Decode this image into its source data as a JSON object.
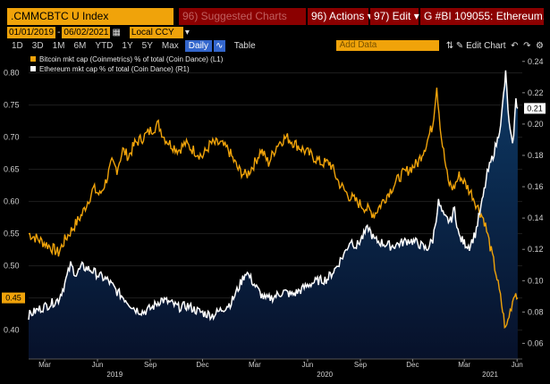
{
  "toolbar": {
    "ticker": ".CMMCBTC U Index",
    "suggested": "96) Suggested Charts",
    "actions": "96) Actions ▾",
    "edit": "97) Edit ▾",
    "security": "G #BI 109055: Ethereum..."
  },
  "range": {
    "start": "01/01/2019",
    "end": "06/02/2021",
    "currency": "Local CCY"
  },
  "periods": [
    "1D",
    "3D",
    "1M",
    "6M",
    "YTD",
    "1Y",
    "5Y",
    "Max"
  ],
  "frequency": "Daily",
  "table_label": "Table",
  "add_data": "Add Data",
  "edit_chart": "Edit Chart",
  "colors": {
    "btc": "#f0a30a",
    "eth": "#ffffff",
    "area": "#0a1f4a",
    "bg": "#000000"
  },
  "chart_data": {
    "type": "line",
    "x_range": [
      "2019-02-01",
      "2021-06-10"
    ],
    "y_left": {
      "ticks": [
        0.4,
        0.45,
        0.5,
        0.55,
        0.6,
        0.65,
        0.7,
        0.75,
        0.8
      ],
      "range": [
        0.355,
        0.83
      ]
    },
    "y_right": {
      "ticks": [
        0.06,
        0.08,
        0.1,
        0.12,
        0.14,
        0.16,
        0.18,
        0.2,
        0.22,
        0.24
      ],
      "range": [
        0.05,
        0.245
      ]
    },
    "month_ticks": [
      "Mar",
      "Jun",
      "Sep",
      "Dec",
      "Mar",
      "Jun",
      "Sep",
      "Dec",
      "Mar",
      "Jun"
    ],
    "month_tick_dates": [
      "2019-03-01",
      "2019-06-01",
      "2019-09-01",
      "2019-12-01",
      "2020-03-01",
      "2020-06-01",
      "2020-09-01",
      "2020-12-01",
      "2021-03-01",
      "2021-06-01"
    ],
    "year_labels": [
      {
        "label": "2019",
        "date": "2019-07-01"
      },
      {
        "label": "2020",
        "date": "2020-07-01"
      },
      {
        "label": "2021",
        "date": "2021-04-15"
      }
    ],
    "last_value_left": "0.45",
    "last_value_right": "0.21",
    "series": [
      {
        "name": "Bitcoin mkt cap (Coinmetrics) % of total (Coin Dance) (L1)",
        "axis": "left",
        "points": [
          [
            "2019-02-01",
            0.55
          ],
          [
            "2019-02-20",
            0.54
          ],
          [
            "2019-03-10",
            0.53
          ],
          [
            "2019-03-25",
            0.52
          ],
          [
            "2019-04-05",
            0.54
          ],
          [
            "2019-04-20",
            0.56
          ],
          [
            "2019-05-05",
            0.58
          ],
          [
            "2019-05-15",
            0.6
          ],
          [
            "2019-05-25",
            0.62
          ],
          [
            "2019-06-05",
            0.61
          ],
          [
            "2019-06-15",
            0.63
          ],
          [
            "2019-06-26",
            0.66
          ],
          [
            "2019-07-05",
            0.65
          ],
          [
            "2019-07-15",
            0.68
          ],
          [
            "2019-07-25",
            0.67
          ],
          [
            "2019-08-05",
            0.69
          ],
          [
            "2019-08-20",
            0.7
          ],
          [
            "2019-09-01",
            0.71
          ],
          [
            "2019-09-15",
            0.72
          ],
          [
            "2019-09-25",
            0.7
          ],
          [
            "2019-10-05",
            0.69
          ],
          [
            "2019-10-20",
            0.68
          ],
          [
            "2019-11-01",
            0.69
          ],
          [
            "2019-11-15",
            0.68
          ],
          [
            "2019-12-01",
            0.67
          ],
          [
            "2019-12-15",
            0.69
          ],
          [
            "2020-01-01",
            0.69
          ],
          [
            "2020-01-15",
            0.68
          ],
          [
            "2020-02-01",
            0.65
          ],
          [
            "2020-02-15",
            0.64
          ],
          [
            "2020-03-01",
            0.66
          ],
          [
            "2020-03-12",
            0.68
          ],
          [
            "2020-03-25",
            0.66
          ],
          [
            "2020-04-10",
            0.69
          ],
          [
            "2020-04-25",
            0.7
          ],
          [
            "2020-05-10",
            0.69
          ],
          [
            "2020-05-25",
            0.68
          ],
          [
            "2020-06-10",
            0.67
          ],
          [
            "2020-06-25",
            0.66
          ],
          [
            "2020-07-10",
            0.66
          ],
          [
            "2020-07-25",
            0.63
          ],
          [
            "2020-08-10",
            0.61
          ],
          [
            "2020-08-25",
            0.6
          ],
          [
            "2020-09-10",
            0.59
          ],
          [
            "2020-09-25",
            0.58
          ],
          [
            "2020-10-10",
            0.6
          ],
          [
            "2020-10-25",
            0.62
          ],
          [
            "2020-11-10",
            0.64
          ],
          [
            "2020-11-25",
            0.65
          ],
          [
            "2020-12-10",
            0.66
          ],
          [
            "2020-12-25",
            0.69
          ],
          [
            "2021-01-05",
            0.72
          ],
          [
            "2021-01-12",
            0.78
          ],
          [
            "2021-01-20",
            0.7
          ],
          [
            "2021-02-01",
            0.63
          ],
          [
            "2021-02-10",
            0.62
          ],
          [
            "2021-02-20",
            0.64
          ],
          [
            "2021-03-01",
            0.63
          ],
          [
            "2021-03-15",
            0.61
          ],
          [
            "2021-03-25",
            0.59
          ],
          [
            "2021-04-05",
            0.57
          ],
          [
            "2021-04-15",
            0.53
          ],
          [
            "2021-04-25",
            0.49
          ],
          [
            "2021-05-05",
            0.44
          ],
          [
            "2021-05-12",
            0.4
          ],
          [
            "2021-05-20",
            0.43
          ],
          [
            "2021-05-28",
            0.46
          ],
          [
            "2021-06-02",
            0.45
          ]
        ]
      },
      {
        "name": "Ethereum mkt cap % of total (Coin Dance) (R1)",
        "axis": "right",
        "points": [
          [
            "2019-02-01",
            0.078
          ],
          [
            "2019-02-20",
            0.082
          ],
          [
            "2019-03-10",
            0.085
          ],
          [
            "2019-03-25",
            0.088
          ],
          [
            "2019-04-05",
            0.098
          ],
          [
            "2019-04-15",
            0.11
          ],
          [
            "2019-04-25",
            0.104
          ],
          [
            "2019-05-05",
            0.109
          ],
          [
            "2019-05-20",
            0.107
          ],
          [
            "2019-06-05",
            0.103
          ],
          [
            "2019-06-20",
            0.1
          ],
          [
            "2019-07-05",
            0.093
          ],
          [
            "2019-07-20",
            0.088
          ],
          [
            "2019-08-05",
            0.082
          ],
          [
            "2019-08-20",
            0.08
          ],
          [
            "2019-09-05",
            0.083
          ],
          [
            "2019-09-20",
            0.088
          ],
          [
            "2019-10-05",
            0.086
          ],
          [
            "2019-10-20",
            0.083
          ],
          [
            "2019-11-05",
            0.084
          ],
          [
            "2019-11-20",
            0.081
          ],
          [
            "2019-12-05",
            0.079
          ],
          [
            "2019-12-20",
            0.078
          ],
          [
            "2020-01-05",
            0.082
          ],
          [
            "2020-01-20",
            0.086
          ],
          [
            "2020-02-01",
            0.095
          ],
          [
            "2020-02-15",
            0.106
          ],
          [
            "2020-02-25",
            0.1
          ],
          [
            "2020-03-10",
            0.092
          ],
          [
            "2020-03-20",
            0.088
          ],
          [
            "2020-04-05",
            0.09
          ],
          [
            "2020-04-20",
            0.093
          ],
          [
            "2020-05-05",
            0.091
          ],
          [
            "2020-05-20",
            0.094
          ],
          [
            "2020-06-05",
            0.098
          ],
          [
            "2020-06-20",
            0.1
          ],
          [
            "2020-07-05",
            0.101
          ],
          [
            "2020-07-20",
            0.108
          ],
          [
            "2020-08-05",
            0.118
          ],
          [
            "2020-08-15",
            0.126
          ],
          [
            "2020-08-25",
            0.122
          ],
          [
            "2020-09-05",
            0.128
          ],
          [
            "2020-09-15",
            0.134
          ],
          [
            "2020-09-25",
            0.126
          ],
          [
            "2020-10-10",
            0.124
          ],
          [
            "2020-10-25",
            0.122
          ],
          [
            "2020-11-10",
            0.124
          ],
          [
            "2020-11-25",
            0.126
          ],
          [
            "2020-12-10",
            0.124
          ],
          [
            "2020-12-25",
            0.12
          ],
          [
            "2021-01-05",
            0.126
          ],
          [
            "2021-01-15",
            0.15
          ],
          [
            "2021-01-25",
            0.14
          ],
          [
            "2021-02-05",
            0.138
          ],
          [
            "2021-02-12",
            0.146
          ],
          [
            "2021-02-20",
            0.128
          ],
          [
            "2021-03-01",
            0.124
          ],
          [
            "2021-03-10",
            0.122
          ],
          [
            "2021-03-20",
            0.13
          ],
          [
            "2021-04-01",
            0.15
          ],
          [
            "2021-04-10",
            0.168
          ],
          [
            "2021-04-20",
            0.18
          ],
          [
            "2021-04-28",
            0.19
          ],
          [
            "2021-05-05",
            0.205
          ],
          [
            "2021-05-12",
            0.232
          ],
          [
            "2021-05-18",
            0.2
          ],
          [
            "2021-05-24",
            0.185
          ],
          [
            "2021-05-30",
            0.215
          ],
          [
            "2021-06-02",
            0.21
          ]
        ]
      }
    ]
  }
}
